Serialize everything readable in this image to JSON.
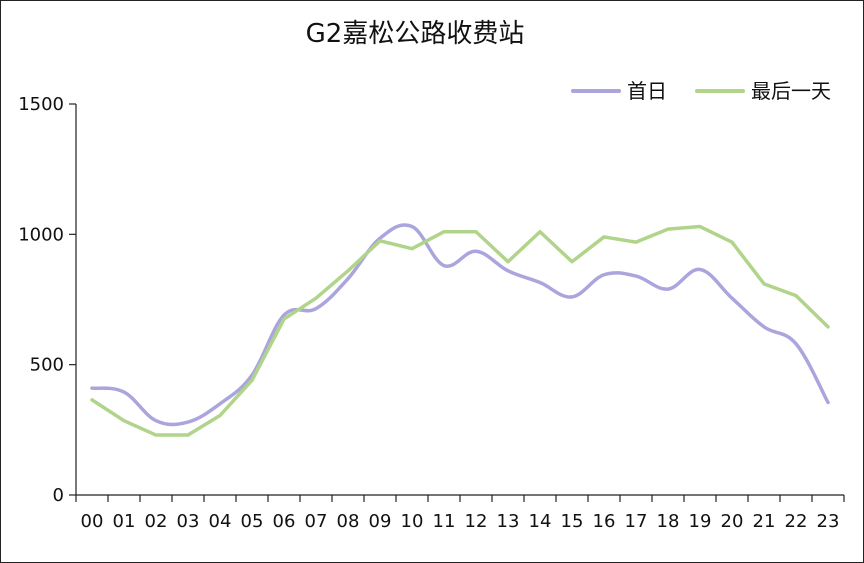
{
  "chart_data": {
    "type": "line",
    "title": "G2嘉松公路收费站",
    "xlabel": "",
    "ylabel": "",
    "categories": [
      "00",
      "01",
      "02",
      "03",
      "04",
      "05",
      "06",
      "07",
      "08",
      "09",
      "10",
      "11",
      "12",
      "13",
      "14",
      "15",
      "16",
      "17",
      "18",
      "19",
      "20",
      "21",
      "22",
      "23"
    ],
    "ylim": [
      0,
      1500
    ],
    "yticks": [
      0,
      500,
      1000,
      1500
    ],
    "grid": false,
    "legend": "top-right",
    "series": [
      {
        "name": "首日",
        "color": "#aba5dd",
        "smooth": true,
        "values": [
          410,
          395,
          285,
          280,
          350,
          460,
          690,
          715,
          830,
          985,
          1030,
          880,
          935,
          860,
          815,
          760,
          845,
          840,
          790,
          865,
          755,
          645,
          580,
          355
        ]
      },
      {
        "name": "最后一天",
        "color": "#b0d48a",
        "smooth": false,
        "values": [
          365,
          285,
          230,
          230,
          305,
          440,
          675,
          755,
          860,
          975,
          945,
          1010,
          1010,
          895,
          1010,
          895,
          990,
          970,
          1020,
          1030,
          970,
          810,
          765,
          645
        ]
      }
    ]
  }
}
